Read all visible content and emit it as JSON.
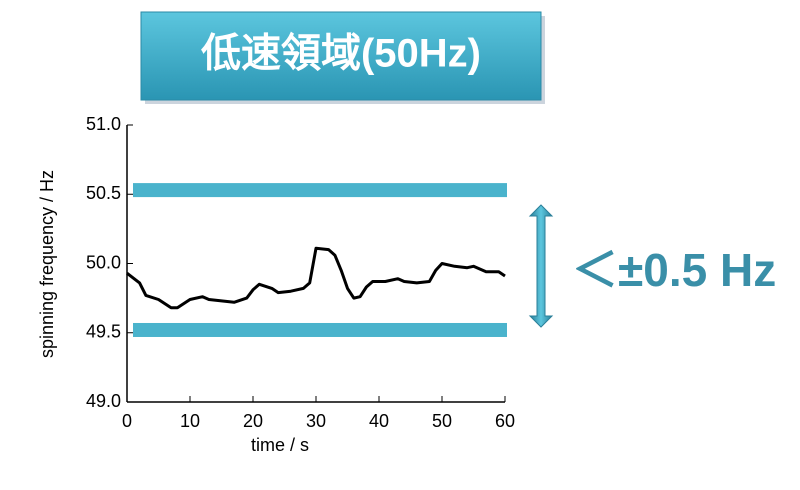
{
  "chart_data": {
    "type": "line",
    "title": "低速領域(50Hz)",
    "annotation": "＜±0.5 Hz",
    "x_label": "time / s",
    "y_label": "spinning frequency / Hz",
    "xlim": [
      0,
      60
    ],
    "xticks": [
      0,
      10,
      20,
      30,
      40,
      50,
      60
    ],
    "ylim": [
      49,
      51
    ],
    "yticks": [
      {
        "value": 49,
        "label": "49.0"
      },
      49.5,
      {
        "value": 50,
        "label": "50.0"
      },
      50.5,
      {
        "value": 51,
        "label": "51.0"
      }
    ],
    "bands": [
      50.53,
      49.52
    ],
    "band_color": "#4ab3cc",
    "series": [
      {
        "color": "#000000",
        "x": [
          0,
          2,
          3,
          5,
          7,
          8,
          10,
          12,
          13,
          15,
          17,
          19,
          20,
          21,
          23,
          24,
          26,
          28,
          29,
          30,
          32,
          33,
          34,
          35,
          36,
          37,
          38,
          39,
          41,
          43,
          44,
          46,
          48,
          49,
          50,
          52,
          54,
          55,
          57,
          59,
          60
        ],
        "values": [
          49.93,
          49.86,
          49.77,
          49.74,
          49.68,
          49.68,
          49.74,
          49.76,
          49.74,
          49.73,
          49.72,
          49.75,
          49.81,
          49.85,
          49.82,
          49.79,
          49.8,
          49.82,
          49.86,
          50.11,
          50.1,
          50.06,
          49.95,
          49.82,
          49.75,
          49.76,
          49.83,
          49.87,
          49.87,
          49.89,
          49.87,
          49.86,
          49.87,
          49.95,
          50.0,
          49.98,
          49.97,
          49.98,
          49.94,
          49.94,
          49.91
        ]
      }
    ]
  }
}
